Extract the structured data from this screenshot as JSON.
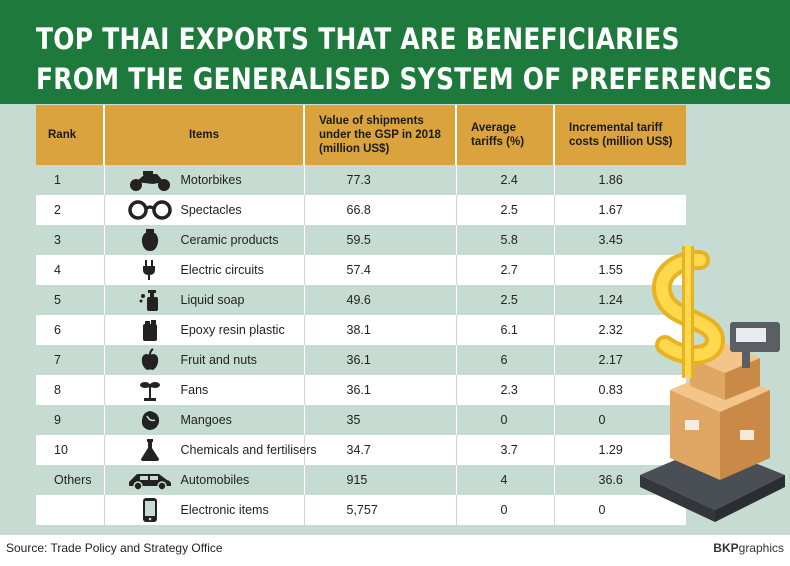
{
  "title": {
    "line1": "TOP THAI EXPORTS THAT ARE BENEFICIARIES",
    "line2": "FROM THE GENERALISED SYSTEM OF PREFERENCES"
  },
  "chart_data": {
    "type": "table",
    "columns": [
      "Rank",
      "Items",
      "Value of shipments under the GSP in 2018 (million US$)",
      "Average tariffs (%)",
      "Incremental tariff costs (million US$)"
    ],
    "header_lines": {
      "ship": [
        "Value of shipments",
        "under the GSP in 2018",
        "(million US$)"
      ],
      "tar": [
        "Average",
        "tariffs (%)"
      ],
      "inc": [
        "Incremental tariff",
        "costs (million US$)"
      ]
    },
    "rows": [
      {
        "rank": "1",
        "item": "Motorbikes",
        "icon": "motorbike-icon",
        "value": "77.3",
        "tariff": "2.4",
        "cost": "1.86"
      },
      {
        "rank": "2",
        "item": "Spectacles",
        "icon": "spectacles-icon",
        "value": "66.8",
        "tariff": "2.5",
        "cost": "1.67"
      },
      {
        "rank": "3",
        "item": "Ceramic products",
        "icon": "vase-icon",
        "value": "59.5",
        "tariff": "5.8",
        "cost": "3.45"
      },
      {
        "rank": "4",
        "item": "Electric circuits",
        "icon": "plug-icon",
        "value": "57.4",
        "tariff": "2.7",
        "cost": "1.55"
      },
      {
        "rank": "5",
        "item": "Liquid soap",
        "icon": "soap-bottle-icon",
        "value": "49.6",
        "tariff": "2.5",
        "cost": "1.24"
      },
      {
        "rank": "6",
        "item": "Epoxy resin plastic",
        "icon": "jerrycan-icon",
        "value": "38.1",
        "tariff": "6.1",
        "cost": "2.32"
      },
      {
        "rank": "7",
        "item": "Fruit and nuts",
        "icon": "apple-icon",
        "value": "36.1",
        "tariff": "6",
        "cost": "2.17"
      },
      {
        "rank": "8",
        "item": "Fans",
        "icon": "fan-icon",
        "value": "36.1",
        "tariff": "2.3",
        "cost": "0.83"
      },
      {
        "rank": "9",
        "item": "Mangoes",
        "icon": "mango-icon",
        "value": "35",
        "tariff": "0",
        "cost": "0"
      },
      {
        "rank": "10",
        "item": "Chemicals and fertilisers",
        "icon": "flask-icon",
        "value": "34.7",
        "tariff": "3.7",
        "cost": "1.29"
      },
      {
        "rank": "Others",
        "item": "Automobiles",
        "icon": "car-icon",
        "value": "915",
        "tariff": "4",
        "cost": "36.6"
      },
      {
        "rank": "",
        "item": "Electronic items",
        "icon": "phone-icon",
        "value": "5,757",
        "tariff": "0",
        "cost": "0"
      }
    ]
  },
  "footer": {
    "source": "Source: Trade Policy and Strategy Office",
    "credit_bold": "BKP",
    "credit_rest": "graphics"
  },
  "colors": {
    "header_green": "#1e7a3c",
    "header_gold": "#dba33e",
    "row_tint": "#c6dcd2"
  }
}
